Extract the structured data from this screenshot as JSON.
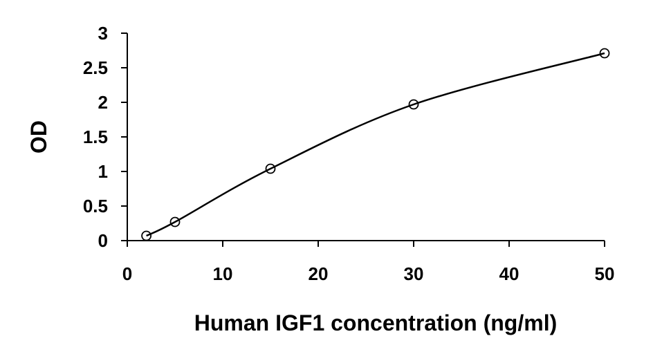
{
  "chart_data": {
    "type": "scatter",
    "title": "",
    "xlabel": "Human IGF1 concentration (ng/ml)",
    "ylabel": "OD",
    "xlim": [
      0,
      50
    ],
    "ylim": [
      0,
      3
    ],
    "xticks": [
      0,
      10,
      20,
      30,
      40,
      50
    ],
    "yticks": [
      0,
      0.5,
      1,
      1.5,
      2,
      2.5,
      3
    ],
    "xtick_labels": [
      "0",
      "10",
      "20",
      "30",
      "40",
      "50"
    ],
    "ytick_labels": [
      "0",
      "0.5",
      "1",
      "1.5",
      "2",
      "2.5",
      "3"
    ],
    "grid": false,
    "legend": "none",
    "marker": "open-circle",
    "trendline": "smooth-curve",
    "series": [
      {
        "x": [
          2,
          5,
          15,
          30,
          50
        ],
        "y": [
          0.07,
          0.27,
          1.04,
          1.97,
          2.71
        ]
      }
    ]
  }
}
